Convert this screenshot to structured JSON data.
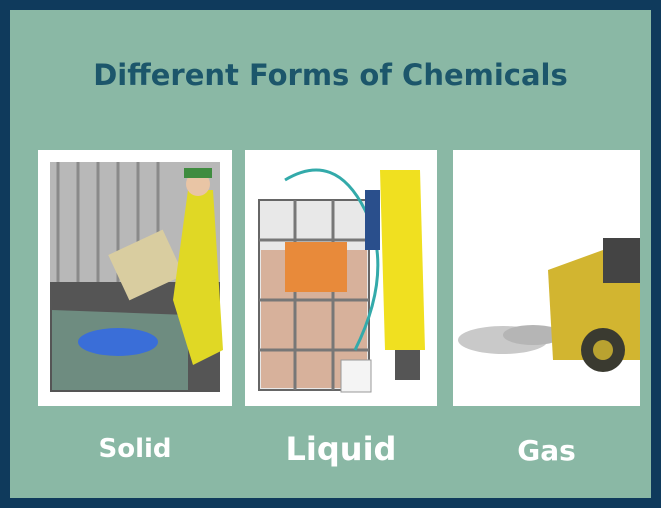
{
  "header": {
    "title": "Different Forms of Chemicals"
  },
  "panels": [
    {
      "label": "Solid"
    },
    {
      "label": "Liquid"
    },
    {
      "label": "Gas"
    }
  ]
}
